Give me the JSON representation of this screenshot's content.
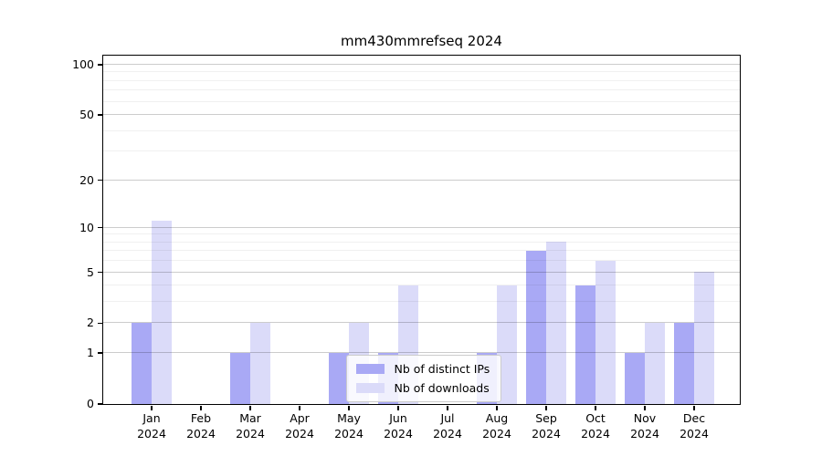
{
  "title": "mm430mmrefseq 2024",
  "legend": {
    "items": [
      {
        "label": "Nb of distinct IPs",
        "color": "#a9a9f5"
      },
      {
        "label": "Nb of downloads",
        "color": "#dbdbf9"
      }
    ]
  },
  "chart_data": {
    "type": "bar",
    "title": "mm430mmrefseq 2024",
    "xlabel": "",
    "ylabel": "",
    "categories": [
      "Jan",
      "Feb",
      "Mar",
      "Apr",
      "May",
      "Jun",
      "Jul",
      "Aug",
      "Sep",
      "Oct",
      "Nov",
      "Dec"
    ],
    "year": "2024",
    "series": [
      {
        "name": "Nb of distinct IPs",
        "color": "#a9a9f5",
        "values": [
          2,
          0,
          1,
          0,
          1,
          1,
          0,
          1,
          7,
          4,
          1,
          2
        ]
      },
      {
        "name": "Nb of downloads",
        "color": "#dbdbf9",
        "values": [
          11,
          0,
          2,
          0,
          2,
          4,
          0,
          4,
          8,
          6,
          2,
          5
        ]
      }
    ],
    "y_scale": "log1p",
    "y_ticks": [
      0,
      1,
      2,
      5,
      10,
      20,
      50,
      100
    ],
    "y_minor_gridlines": [
      3,
      4,
      6,
      7,
      8,
      9,
      30,
      40,
      60,
      70,
      80,
      90
    ],
    "ylim": [
      0,
      113
    ],
    "grid": true,
    "grid_on_top": true,
    "legend_position": "bottom-center"
  }
}
